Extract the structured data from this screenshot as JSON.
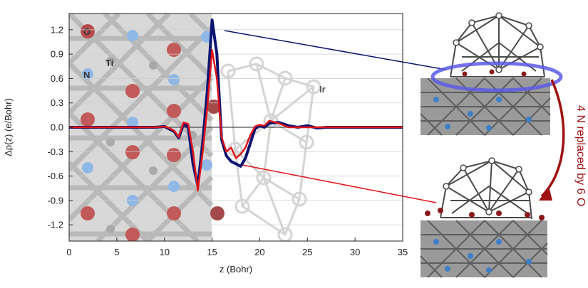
{
  "chart_data": {
    "type": "line",
    "xlabel": "z (Bohr)",
    "ylabel": "Δρ(z)  (e/Bohr)",
    "xlim": [
      0,
      35
    ],
    "ylim": [
      -1.4,
      1.4
    ],
    "x_ticks": [
      "0",
      "5",
      "10",
      "15",
      "20",
      "25",
      "30",
      "35"
    ],
    "y_ticks": [
      "1.2",
      "0.9",
      "0.6",
      "0.3",
      "0.0",
      "-0.3",
      "-0.6",
      "-0.9",
      "-1.2"
    ],
    "grid": "horizontal",
    "background_labels": [
      "O",
      "Ti",
      "N",
      "Ir"
    ],
    "annotation": "4 N replaced by 6 O",
    "colors": {
      "navy": "#0b1470",
      "red": "#e0141a",
      "annotation": "#a01010"
    },
    "series": [
      {
        "color": "#0b1470",
        "x": [
          0,
          9,
          10,
          10.5,
          11,
          11.5,
          12,
          12.5,
          13,
          13.5,
          14,
          14.5,
          15,
          15.5,
          16,
          16.5,
          17,
          17.5,
          18,
          18.5,
          19,
          19.5,
          20,
          20.5,
          21,
          22,
          23,
          24,
          25,
          26,
          27,
          28,
          29,
          30,
          35
        ],
        "y": [
          0.0,
          0.0,
          0.01,
          -0.02,
          -0.05,
          -0.13,
          0.04,
          0.0,
          -0.45,
          -0.72,
          -0.2,
          0.45,
          1.32,
          0.9,
          -0.15,
          -0.35,
          -0.42,
          -0.45,
          -0.48,
          -0.38,
          -0.2,
          -0.02,
          0.02,
          0.0,
          0.05,
          0.06,
          0.02,
          0.0,
          0.02,
          -0.01,
          0.0,
          0.0,
          0.0,
          0.0,
          0.0
        ]
      },
      {
        "color": "#e0141a",
        "x": [
          0,
          9,
          10,
          10.5,
          11,
          11.5,
          12,
          12.5,
          13,
          13.5,
          14,
          14.5,
          15,
          15.5,
          16,
          16.5,
          17,
          17.5,
          18,
          18.5,
          19,
          19.5,
          20,
          20.5,
          21,
          22,
          23,
          24,
          25,
          26,
          27,
          28,
          29,
          30,
          35
        ],
        "y": [
          0.0,
          0.0,
          0.01,
          -0.01,
          -0.04,
          -0.12,
          0.06,
          0.04,
          -0.3,
          -0.78,
          -0.32,
          0.25,
          0.95,
          0.6,
          -0.12,
          -0.3,
          -0.25,
          -0.38,
          -0.33,
          -0.25,
          -0.1,
          0.01,
          0.03,
          0.02,
          0.08,
          0.05,
          0.0,
          0.0,
          0.0,
          0.0,
          0.0,
          0.0,
          0.0,
          0.0,
          0.0
        ]
      }
    ]
  }
}
